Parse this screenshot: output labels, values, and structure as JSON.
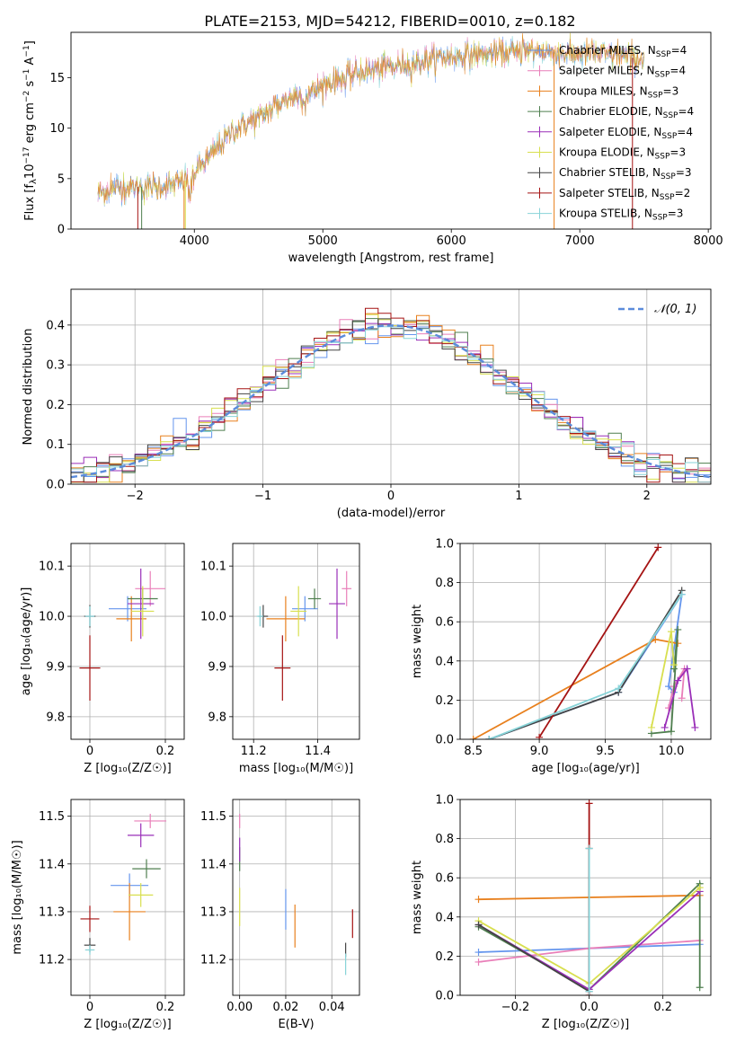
{
  "figure": {
    "title": "PLATE=2153, MJD=54212, FIBERID=0010, z=0.182"
  },
  "colors": {
    "series": [
      "#6495ED",
      "#E97FB9",
      "#E8801E",
      "#4F7F4F",
      "#9A2FB8",
      "#D8DF4F",
      "#444444",
      "#A51313",
      "#87D3D8"
    ],
    "grid": "#b0b0b0",
    "spectrum": "#808080"
  },
  "chart_data": [
    {
      "type": "line",
      "panel": "spectrum",
      "xlabel": "wavelength [Angstrom, rest frame]",
      "ylabel": "Flux [f_λ 10^-17 erg cm^-2 s^-1 A^-1]",
      "xlim": [
        3040,
        8020
      ],
      "ylim": [
        0,
        19.5
      ],
      "xticks": [
        4000,
        5000,
        6000,
        7000,
        8000
      ],
      "yticks": [
        0,
        5,
        10,
        15
      ],
      "grid": false,
      "legend_position": "top-right",
      "legend": [
        {
          "label": "Chabrier MILES, N",
          "sub": "SSP",
          "tail": "=4"
        },
        {
          "label": "Salpeter MILES, N",
          "sub": "SSP",
          "tail": "=4"
        },
        {
          "label": "Kroupa MILES, N",
          "sub": "SSP",
          "tail": "=3"
        },
        {
          "label": "Chabrier ELODIE, N",
          "sub": "SSP",
          "tail": "=4"
        },
        {
          "label": "Salpeter ELODIE, N",
          "sub": "SSP",
          "tail": "=4"
        },
        {
          "label": "Kroupa ELODIE, N",
          "sub": "SSP",
          "tail": "=3"
        },
        {
          "label": "Chabrier STELIB, N",
          "sub": "SSP",
          "tail": "=3"
        },
        {
          "label": "Salpeter STELIB, N",
          "sub": "SSP",
          "tail": "=2"
        },
        {
          "label": "Kroupa STELIB, N",
          "sub": "SSP",
          "tail": "=3"
        }
      ],
      "continuum": {
        "x": [
          3250,
          3400,
          3600,
          3800,
          3950,
          4100,
          4300,
          4500,
          4700,
          4900,
          5100,
          5300,
          5500,
          5700,
          5900,
          6100,
          6300,
          6500,
          6700,
          6900,
          7100,
          7300,
          7500
        ],
        "y": [
          3.6,
          4.1,
          4.2,
          4.3,
          4.9,
          6.9,
          9.8,
          11.0,
          12.8,
          13.5,
          14.8,
          15.6,
          16.0,
          16.4,
          17.0,
          17.2,
          17.4,
          17.5,
          17.6,
          17.4,
          17.3,
          17.2,
          16.8
        ]
      }
    },
    {
      "type": "line",
      "panel": "residuals",
      "xlabel": "(data-model)/error",
      "ylabel": "Normed distribution",
      "xlim": [
        -2.5,
        2.5
      ],
      "ylim": [
        0,
        0.49
      ],
      "xticks": [
        -2,
        -1,
        0,
        1,
        2
      ],
      "yticks": [
        0.0,
        0.1,
        0.2,
        0.3,
        0.4
      ],
      "grid": true,
      "legend_position": "top-right",
      "legend": "𝒩(0, 1)",
      "gaussian": {
        "mean": 0,
        "sigma": 1
      }
    },
    {
      "type": "scatter",
      "panel": "age_vs_Z",
      "xlabel": "Z [log₁₀(Z/Z☉)]",
      "ylabel": "age  [log₁₀(age/yr)]",
      "xlim": [
        -0.05,
        0.25
      ],
      "ylim": [
        9.755,
        10.145
      ],
      "xticks": [
        0.0,
        0.2
      ],
      "yticks": [
        9.8,
        9.9,
        10.0,
        10.1
      ],
      "grid": true,
      "points": [
        {
          "x": 0.1,
          "xerr": 0.1,
          "y": 10.015,
          "yerr": 0.05
        },
        {
          "x": 0.16,
          "xerr": 0.08,
          "y": 10.055,
          "yerr": 0.07
        },
        {
          "x": 0.11,
          "xerr": 0.08,
          "y": 9.995,
          "yerr": 0.09
        },
        {
          "x": 0.14,
          "xerr": 0.08,
          "y": 10.035,
          "yerr": 0.04
        },
        {
          "x": 0.135,
          "xerr": 0.07,
          "y": 10.025,
          "yerr": 0.14
        },
        {
          "x": 0.14,
          "xerr": 0.06,
          "y": 10.01,
          "yerr": 0.1
        },
        {
          "x": 0.0,
          "xerr": 0.03,
          "y": 10.0,
          "yerr": 0.045
        },
        {
          "x": 0.0,
          "xerr": 0.055,
          "y": 9.897,
          "yerr": 0.13
        },
        {
          "x": 0.0,
          "xerr": 0.025,
          "y": 10.0,
          "yerr": 0.04
        }
      ]
    },
    {
      "type": "scatter",
      "panel": "age_vs_mass",
      "xlabel": "mass [log₁₀(M/M☉)]",
      "ylabel": "",
      "xlim": [
        11.135,
        11.53
      ],
      "ylim": [
        9.755,
        10.145
      ],
      "xticks": [
        11.2,
        11.4
      ],
      "yticks": [
        9.8,
        9.9,
        10.0,
        10.1
      ],
      "grid": true,
      "points": [
        {
          "x": 11.36,
          "xerr": 0.08,
          "y": 10.015,
          "yerr": 0.05
        },
        {
          "x": 11.49,
          "xerr": 0.03,
          "y": 10.055,
          "yerr": 0.07
        },
        {
          "x": 11.3,
          "xerr": 0.12,
          "y": 9.995,
          "yerr": 0.09
        },
        {
          "x": 11.39,
          "xerr": 0.04,
          "y": 10.035,
          "yerr": 0.04
        },
        {
          "x": 11.46,
          "xerr": 0.05,
          "y": 10.025,
          "yerr": 0.14
        },
        {
          "x": 11.34,
          "xerr": 0.05,
          "y": 10.01,
          "yerr": 0.1
        },
        {
          "x": 11.23,
          "xerr": 0.03,
          "y": 10.0,
          "yerr": 0.045
        },
        {
          "x": 11.29,
          "xerr": 0.05,
          "y": 9.897,
          "yerr": 0.13
        },
        {
          "x": 11.22,
          "xerr": 0.02,
          "y": 10.0,
          "yerr": 0.04
        }
      ]
    },
    {
      "type": "line",
      "panel": "weight_vs_age",
      "xlabel": "age  [log₁₀(age/yr)]",
      "ylabel": "mass weight",
      "xlim": [
        8.4,
        10.3
      ],
      "ylim": [
        0.0,
        1.0
      ],
      "xticks": [
        8.5,
        9.0,
        9.5,
        10.0
      ],
      "yticks": [
        0.0,
        0.2,
        0.4,
        0.6,
        0.8,
        1.0
      ],
      "grid": true,
      "series": [
        {
          "x": [
            8.62,
            9.6,
            10.08,
            9.98,
            10.02
          ],
          "y": [
            0.0,
            0.24,
            0.74,
            0.27,
            0.24
          ]
        },
        {
          "x": [
            9.98,
            10.02,
            10.1,
            10.08
          ],
          "y": [
            0.16,
            0.27,
            0.36,
            0.21
          ]
        },
        {
          "x": [
            8.5,
            9.88,
            10.05
          ],
          "y": [
            0.0,
            0.51,
            0.49
          ]
        },
        {
          "x": [
            9.85,
            10.0,
            10.05,
            10.02
          ],
          "y": [
            0.03,
            0.04,
            0.56,
            0.36
          ]
        },
        {
          "x": [
            9.95,
            10.05,
            10.12,
            10.18
          ],
          "y": [
            0.06,
            0.3,
            0.36,
            0.06
          ]
        },
        {
          "x": [
            9.85,
            10.0,
            10.02
          ],
          "y": [
            0.06,
            0.55,
            0.38
          ]
        },
        {
          "x": [
            8.62,
            9.6,
            10.08
          ],
          "y": [
            0.0,
            0.24,
            0.76
          ]
        },
        {
          "x": [
            9.0,
            9.9
          ],
          "y": [
            0.01,
            0.98
          ]
        },
        {
          "x": [
            8.62,
            9.6,
            10.08
          ],
          "y": [
            0.0,
            0.26,
            0.74
          ]
        }
      ]
    },
    {
      "type": "scatter",
      "panel": "mass_vs_Z",
      "xlabel": "Z [log₁₀(Z/Z☉)]",
      "ylabel": "mass [log₁₀(M/M☉)]",
      "xlim": [
        -0.05,
        0.25
      ],
      "ylim": [
        11.125,
        11.535
      ],
      "xticks": [
        0.0,
        0.2
      ],
      "yticks": [
        11.2,
        11.3,
        11.4,
        11.5
      ],
      "grid": true,
      "points": [
        {
          "x": 0.105,
          "xerr": 0.1,
          "y": 11.355,
          "yerr": 0.05
        },
        {
          "x": 0.16,
          "xerr": 0.085,
          "y": 11.49,
          "yerr": 0.03
        },
        {
          "x": 0.105,
          "xerr": 0.085,
          "y": 11.3,
          "yerr": 0.12
        },
        {
          "x": 0.15,
          "xerr": 0.075,
          "y": 11.39,
          "yerr": 0.04
        },
        {
          "x": 0.135,
          "xerr": 0.07,
          "y": 11.46,
          "yerr": 0.05
        },
        {
          "x": 0.135,
          "xerr": 0.065,
          "y": 11.335,
          "yerr": 0.05
        },
        {
          "x": 0.0,
          "xerr": 0.03,
          "y": 11.23,
          "yerr": 0.03
        },
        {
          "x": 0.0,
          "xerr": 0.05,
          "y": 11.285,
          "yerr": 0.055
        },
        {
          "x": 0.0,
          "xerr": 0.025,
          "y": 11.22,
          "yerr": 0.02
        }
      ]
    },
    {
      "type": "scatter",
      "panel": "mass_vs_EBV",
      "xlabel": "E(B-V)",
      "ylabel": "",
      "xlim": [
        -0.003,
        0.052
      ],
      "ylim": [
        11.125,
        11.535
      ],
      "xticks": [
        0.0,
        0.02,
        0.04
      ],
      "xtick_labels": [
        "0.00",
        "0.02",
        "0.04"
      ],
      "yticks": [
        11.2,
        11.3,
        11.4,
        11.5
      ],
      "grid": true,
      "points": [
        {
          "x": 0.02,
          "y": 11.305,
          "yerr": 0.085
        },
        {
          "x": 0.0,
          "y": 11.49,
          "yerr": 0.03
        },
        {
          "x": 0.024,
          "y": 11.27,
          "yerr": 0.09
        },
        {
          "x": 0.0,
          "y": 11.41,
          "yerr": 0.05
        },
        {
          "x": 0.0,
          "y": 11.43,
          "yerr": 0.05
        },
        {
          "x": 0.0,
          "y": 11.31,
          "yerr": 0.08
        },
        {
          "x": 0.046,
          "y": 11.22,
          "yerr": 0.03
        },
        {
          "x": 0.049,
          "y": 11.275,
          "yerr": 0.06
        },
        {
          "x": 0.046,
          "y": 11.19,
          "yerr": 0.045
        }
      ]
    },
    {
      "type": "line",
      "panel": "weight_vs_Z",
      "xlabel": "Z [log₁₀(Z/Z☉)]",
      "ylabel": "mass weight",
      "xlim": [
        -0.35,
        0.33
      ],
      "ylim": [
        0.0,
        1.0
      ],
      "xticks": [
        -0.2,
        0.0,
        0.2
      ],
      "xtick_labels": [
        "−0.2",
        "0.0",
        "0.2"
      ],
      "yticks": [
        0.0,
        0.2,
        0.4,
        0.6,
        0.8,
        1.0
      ],
      "grid": true,
      "series": [
        {
          "x": [
            -0.3,
            0.0,
            0.3
          ],
          "y": [
            0.22,
            0.24,
            0.26
          ]
        },
        {
          "x": [
            -0.3,
            0.0,
            0.3
          ],
          "y": [
            0.17,
            0.24,
            0.28
          ]
        },
        {
          "x": [
            -0.3,
            0.3
          ],
          "y": [
            0.49,
            0.51
          ]
        },
        {
          "x": [
            -0.3,
            0.0,
            0.3,
            0.3
          ],
          "y": [
            0.35,
            0.03,
            0.57,
            0.04
          ]
        },
        {
          "x": [
            -0.3,
            0.0,
            0.3
          ],
          "y": [
            0.36,
            0.03,
            0.53
          ]
        },
        {
          "x": [
            -0.3,
            0.0,
            0.3
          ],
          "y": [
            0.38,
            0.06,
            0.55
          ]
        },
        {
          "x": [
            -0.3,
            0.0,
            0.0
          ],
          "y": [
            0.36,
            0.02,
            0.75
          ]
        },
        {
          "x": [
            0.0,
            0.0
          ],
          "y": [
            0.0,
            0.98
          ]
        },
        {
          "x": [
            0.0,
            0.0
          ],
          "y": [
            0.02,
            0.75
          ]
        }
      ]
    }
  ]
}
